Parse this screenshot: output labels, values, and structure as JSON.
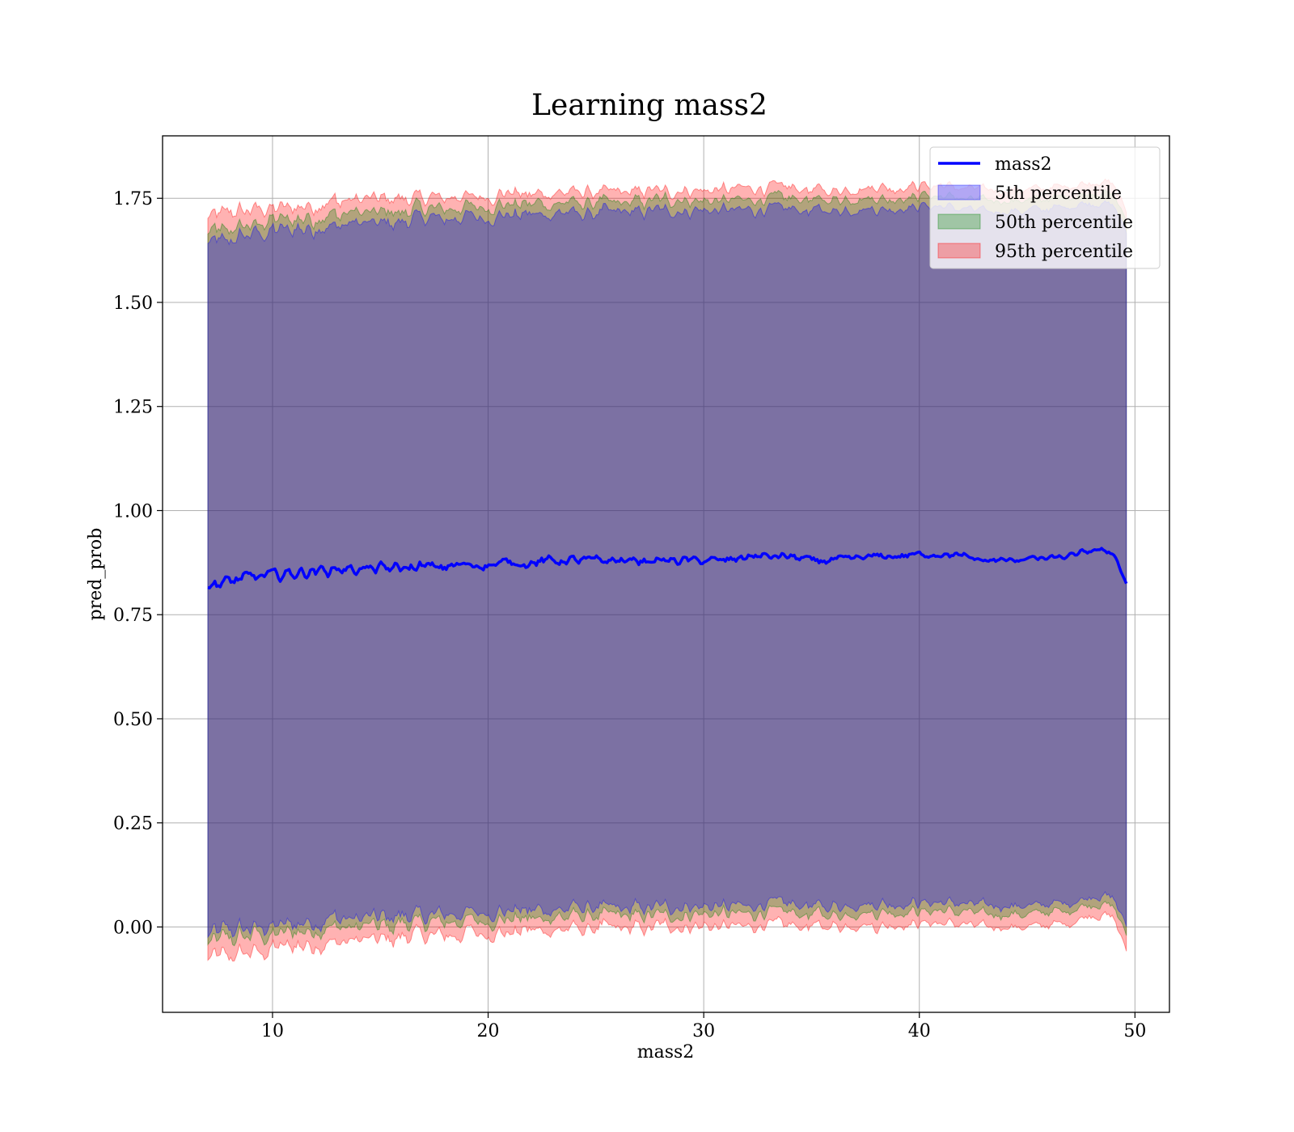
{
  "chart_data": {
    "type": "area",
    "title": "Learning mass2",
    "xlabel": "mass2",
    "ylabel": "pred_prob",
    "xlim": [
      4.9,
      51.6
    ],
    "ylim": [
      -0.205,
      1.9
    ],
    "x_ticks": [
      10,
      20,
      30,
      40,
      50
    ],
    "x_tick_labels": [
      "10",
      "20",
      "30",
      "40",
      "50"
    ],
    "y_ticks": [
      0.0,
      0.25,
      0.5,
      0.75,
      1.0,
      1.25,
      1.5,
      1.75
    ],
    "y_tick_labels": [
      "0.00",
      "0.25",
      "0.50",
      "0.75",
      "1.00",
      "1.25",
      "1.50",
      "1.75"
    ],
    "grid": true,
    "legend_position": "top-right",
    "x_range": [
      7.0,
      49.6
    ],
    "x": [
      7,
      8,
      9,
      10,
      11,
      12,
      13,
      14,
      15,
      16,
      17,
      18,
      19,
      20,
      21,
      22,
      23,
      24,
      25,
      26,
      27,
      28,
      29,
      30,
      31,
      32,
      33,
      34,
      35,
      36,
      37,
      38,
      39,
      40,
      41,
      42,
      43,
      44,
      45,
      46,
      47,
      48,
      49,
      49.6
    ],
    "series": [
      {
        "name": "mass2",
        "kind": "line",
        "color": "#0000ff",
        "values": [
          0.82,
          0.83,
          0.84,
          0.845,
          0.85,
          0.855,
          0.86,
          0.86,
          0.86,
          0.862,
          0.865,
          0.865,
          0.87,
          0.87,
          0.875,
          0.875,
          0.88,
          0.88,
          0.88,
          0.88,
          0.88,
          0.88,
          0.88,
          0.88,
          0.88,
          0.89,
          0.89,
          0.89,
          0.88,
          0.88,
          0.885,
          0.89,
          0.89,
          0.895,
          0.895,
          0.89,
          0.88,
          0.88,
          0.885,
          0.885,
          0.89,
          0.905,
          0.9,
          0.825
        ]
      },
      {
        "name": "5th percentile",
        "kind": "band",
        "color": "#0000ff",
        "lower": [
          -0.02,
          -0.01,
          0.0,
          0.0,
          0.01,
          0.015,
          0.02,
          0.02,
          0.02,
          0.025,
          0.03,
          0.03,
          0.035,
          0.035,
          0.04,
          0.04,
          0.04,
          0.045,
          0.045,
          0.045,
          0.045,
          0.05,
          0.05,
          0.05,
          0.05,
          0.05,
          0.055,
          0.055,
          0.05,
          0.05,
          0.055,
          0.055,
          0.055,
          0.06,
          0.06,
          0.055,
          0.05,
          0.05,
          0.05,
          0.055,
          0.06,
          0.075,
          0.07,
          0.0
        ],
        "upper": [
          1.64,
          1.65,
          1.66,
          1.67,
          1.675,
          1.68,
          1.685,
          1.69,
          1.69,
          1.695,
          1.7,
          1.7,
          1.705,
          1.705,
          1.71,
          1.71,
          1.715,
          1.715,
          1.715,
          1.715,
          1.715,
          1.72,
          1.72,
          1.72,
          1.72,
          1.72,
          1.725,
          1.725,
          1.72,
          1.72,
          1.725,
          1.725,
          1.725,
          1.73,
          1.73,
          1.725,
          1.72,
          1.72,
          1.72,
          1.725,
          1.73,
          1.74,
          1.735,
          1.67
        ]
      },
      {
        "name": "50th percentile",
        "kind": "band",
        "color": "#008000",
        "lower": [
          -0.04,
          -0.03,
          -0.02,
          -0.02,
          -0.01,
          -0.005,
          0.0,
          0.0,
          0.0,
          0.005,
          0.01,
          0.01,
          0.015,
          0.015,
          0.02,
          0.02,
          0.02,
          0.025,
          0.025,
          0.025,
          0.025,
          0.03,
          0.03,
          0.03,
          0.03,
          0.03,
          0.035,
          0.035,
          0.03,
          0.03,
          0.035,
          0.035,
          0.035,
          0.04,
          0.04,
          0.035,
          0.03,
          0.03,
          0.03,
          0.035,
          0.04,
          0.055,
          0.05,
          -0.02
        ],
        "upper": [
          1.665,
          1.675,
          1.685,
          1.695,
          1.7,
          1.705,
          1.71,
          1.715,
          1.715,
          1.72,
          1.725,
          1.725,
          1.73,
          1.73,
          1.735,
          1.735,
          1.74,
          1.74,
          1.74,
          1.74,
          1.74,
          1.745,
          1.745,
          1.745,
          1.745,
          1.745,
          1.75,
          1.75,
          1.745,
          1.745,
          1.75,
          1.75,
          1.75,
          1.755,
          1.755,
          1.75,
          1.745,
          1.745,
          1.745,
          1.75,
          1.755,
          1.765,
          1.76,
          1.695
        ]
      },
      {
        "name": "95th percentile",
        "kind": "band",
        "color": "#ff0000",
        "lower": [
          -0.08,
          -0.07,
          -0.06,
          -0.055,
          -0.045,
          -0.04,
          -0.035,
          -0.03,
          -0.03,
          -0.025,
          -0.02,
          -0.02,
          -0.015,
          -0.015,
          -0.01,
          -0.01,
          -0.01,
          -0.005,
          -0.005,
          -0.005,
          -0.005,
          0.0,
          0.0,
          0.0,
          0.0,
          0.0,
          0.005,
          0.005,
          0.0,
          0.0,
          0.005,
          0.005,
          0.005,
          0.01,
          0.01,
          0.005,
          0.0,
          0.0,
          0.0,
          0.005,
          0.01,
          0.03,
          0.025,
          -0.06
        ],
        "upper": [
          1.705,
          1.715,
          1.72,
          1.725,
          1.73,
          1.735,
          1.74,
          1.745,
          1.745,
          1.75,
          1.75,
          1.75,
          1.755,
          1.755,
          1.76,
          1.76,
          1.765,
          1.765,
          1.765,
          1.765,
          1.765,
          1.77,
          1.77,
          1.77,
          1.77,
          1.775,
          1.775,
          1.775,
          1.77,
          1.77,
          1.775,
          1.775,
          1.775,
          1.78,
          1.78,
          1.775,
          1.77,
          1.77,
          1.77,
          1.775,
          1.78,
          1.79,
          1.785,
          1.72
        ]
      }
    ]
  }
}
